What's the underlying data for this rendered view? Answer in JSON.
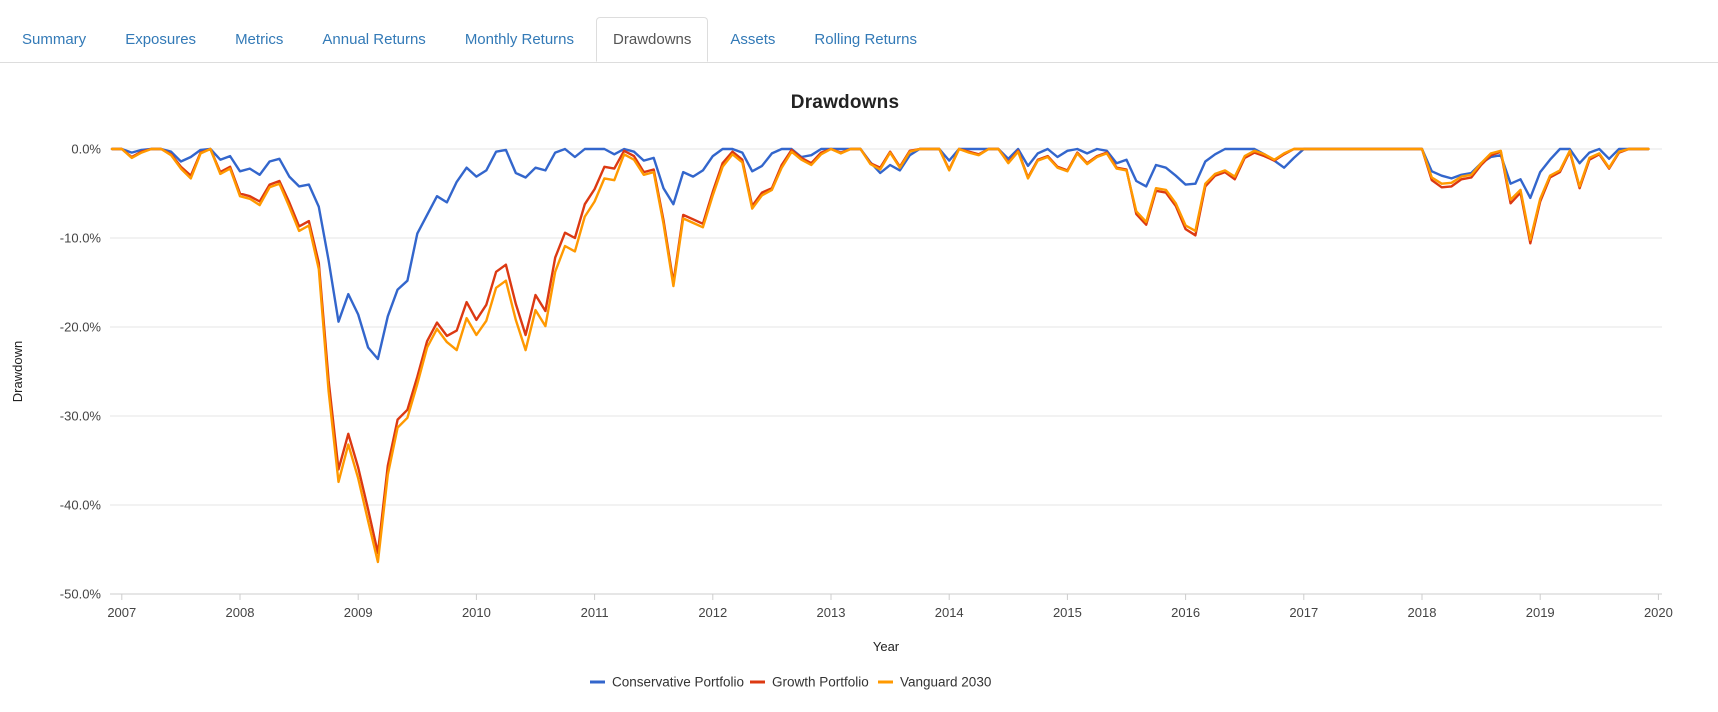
{
  "tabs": {
    "items": [
      {
        "label": "Summary",
        "active": false
      },
      {
        "label": "Exposures",
        "active": false
      },
      {
        "label": "Metrics",
        "active": false
      },
      {
        "label": "Annual Returns",
        "active": false
      },
      {
        "label": "Monthly Returns",
        "active": false
      },
      {
        "label": "Drawdowns",
        "active": true
      },
      {
        "label": "Assets",
        "active": false
      },
      {
        "label": "Rolling Returns",
        "active": false
      }
    ],
    "link_color": "#337ab7",
    "active_text_color": "#555555",
    "border_color": "#dddddd"
  },
  "chart_data": {
    "type": "line",
    "title": "Drawdowns",
    "xlabel": "Year",
    "ylabel": "Drawdown",
    "ylim": [
      -50,
      0
    ],
    "yticks": [
      {
        "value": 0,
        "label": "0.0%"
      },
      {
        "value": -10,
        "label": "-10.0%"
      },
      {
        "value": -20,
        "label": "-20.0%"
      },
      {
        "value": -30,
        "label": "-30.0%"
      },
      {
        "value": -40,
        "label": "-40.0%"
      },
      {
        "value": -50,
        "label": "-50.0%"
      }
    ],
    "xticks": [
      "2007",
      "2008",
      "2009",
      "2010",
      "2011",
      "2012",
      "2013",
      "2014",
      "2015",
      "2016",
      "2017",
      "2018",
      "2019",
      "2020"
    ],
    "x_start_month": "2006-12",
    "frequency": "monthly",
    "grid": "horizontal-only",
    "legend_position": "bottom-center",
    "series": [
      {
        "name": "Conservative Portfolio",
        "color": "#3366cc",
        "values": [
          0,
          0,
          -0.4,
          -0.1,
          0,
          0,
          -0.3,
          -1.4,
          -0.9,
          -0.1,
          0,
          -1.2,
          -0.8,
          -2.5,
          -2.2,
          -2.9,
          -1.4,
          -1.1,
          -3.1,
          -4.2,
          -4.0,
          -6.5,
          -12.5,
          -19.4,
          -16.3,
          -18.6,
          -22.3,
          -23.6,
          -18.8,
          -15.8,
          -14.8,
          -9.5,
          -7.4,
          -5.3,
          -6.0,
          -3.7,
          -2.1,
          -3.1,
          -2.4,
          -0.3,
          -0.1,
          -2.7,
          -3.2,
          -2.1,
          -2.4,
          -0.4,
          0,
          -0.9,
          0,
          0,
          0,
          -0.6,
          0,
          -0.3,
          -1.3,
          -1.0,
          -4.4,
          -6.2,
          -2.6,
          -3.1,
          -2.4,
          -0.8,
          0,
          0,
          -0.4,
          -2.5,
          -1.9,
          -0.5,
          0,
          0,
          -0.9,
          -0.7,
          0,
          0,
          0,
          0,
          0,
          -1.5,
          -2.7,
          -1.8,
          -2.4,
          -0.7,
          0,
          0,
          0,
          -1.3,
          0,
          0,
          0,
          0,
          0,
          -1.1,
          0,
          -1.9,
          -0.5,
          0,
          -0.9,
          -0.2,
          0,
          -0.5,
          0,
          -0.2,
          -1.6,
          -1.2,
          -3.6,
          -4.2,
          -1.8,
          -2.1,
          -3.0,
          -4.0,
          -3.9,
          -1.4,
          -0.6,
          0,
          0,
          0,
          0,
          -0.6,
          -1.3,
          -2.1,
          -1.0,
          0,
          0,
          0,
          0,
          0,
          0,
          0,
          0,
          0,
          0,
          0,
          0,
          0,
          -2.5,
          -3.0,
          -3.3,
          -2.9,
          -2.7,
          -1.6,
          -0.9,
          -0.7,
          -3.9,
          -3.4,
          -5.5,
          -2.6,
          -1.2,
          0,
          0,
          -1.6,
          -0.4,
          0,
          -1.1,
          0,
          0,
          0,
          0
        ]
      },
      {
        "name": "Growth Portfolio",
        "color": "#dc3912",
        "values": [
          0,
          0,
          -0.9,
          -0.3,
          0,
          0,
          -0.6,
          -2.0,
          -3.0,
          -0.4,
          0,
          -2.6,
          -2.0,
          -5.0,
          -5.3,
          -5.9,
          -4.0,
          -3.6,
          -6.0,
          -8.7,
          -8.1,
          -12.8,
          -26.0,
          -36.0,
          -32.0,
          -35.8,
          -40.5,
          -45.4,
          -35.6,
          -30.4,
          -29.3,
          -25.6,
          -21.6,
          -19.5,
          -21.0,
          -20.4,
          -17.2,
          -19.2,
          -17.5,
          -13.8,
          -13.0,
          -17.4,
          -20.9,
          -16.4,
          -18.2,
          -12.2,
          -9.4,
          -10.0,
          -6.2,
          -4.5,
          -2.0,
          -2.2,
          -0.2,
          -0.8,
          -2.6,
          -2.3,
          -8.0,
          -15.0,
          -7.4,
          -7.9,
          -8.4,
          -4.8,
          -1.6,
          -0.3,
          -1.2,
          -6.4,
          -4.9,
          -4.4,
          -1.8,
          -0.1,
          -1.0,
          -1.6,
          -0.4,
          0,
          -0.4,
          0,
          0,
          -1.6,
          -2.1,
          -0.3,
          -2.0,
          -0.2,
          0,
          0,
          0,
          -2.3,
          0,
          -0.3,
          -0.6,
          0,
          0,
          -1.5,
          -0.2,
          -3.2,
          -1.2,
          -0.8,
          -2.0,
          -2.4,
          -0.4,
          -1.6,
          -0.8,
          -0.4,
          -2.1,
          -2.3,
          -7.3,
          -8.5,
          -4.7,
          -4.9,
          -6.4,
          -9.0,
          -9.7,
          -4.2,
          -3.0,
          -2.6,
          -3.4,
          -1.0,
          -0.4,
          -0.8,
          -1.3,
          -0.6,
          0,
          0,
          0,
          0,
          0,
          0,
          0,
          0,
          0,
          0,
          0,
          0,
          0,
          0,
          -3.5,
          -4.3,
          -4.2,
          -3.4,
          -3.2,
          -1.8,
          -0.7,
          -0.3,
          -6.1,
          -4.9,
          -10.6,
          -5.9,
          -3.2,
          -2.6,
          -0.3,
          -4.4,
          -1.2,
          -0.6,
          -2.2,
          -0.4,
          0,
          0,
          0
        ]
      },
      {
        "name": "Vanguard 2030",
        "color": "#ff9900",
        "values": [
          0,
          0,
          -1.0,
          -0.4,
          0,
          0,
          -0.7,
          -2.2,
          -3.3,
          -0.5,
          0,
          -2.8,
          -2.2,
          -5.3,
          -5.6,
          -6.3,
          -4.3,
          -3.9,
          -6.5,
          -9.2,
          -8.6,
          -13.5,
          -27.2,
          -37.4,
          -33.2,
          -37.0,
          -41.8,
          -46.4,
          -36.6,
          -31.3,
          -30.2,
          -26.4,
          -22.3,
          -20.2,
          -21.7,
          -22.6,
          -19.0,
          -20.9,
          -19.3,
          -15.6,
          -14.8,
          -19.2,
          -22.6,
          -18.1,
          -19.9,
          -13.8,
          -10.9,
          -11.5,
          -7.6,
          -5.9,
          -3.3,
          -3.5,
          -0.6,
          -1.2,
          -2.9,
          -2.6,
          -8.4,
          -15.4,
          -7.8,
          -8.3,
          -8.8,
          -5.2,
          -2.0,
          -0.6,
          -1.5,
          -6.7,
          -5.2,
          -4.6,
          -2.1,
          -0.3,
          -1.2,
          -1.8,
          -0.6,
          0,
          -0.5,
          0,
          0,
          -1.7,
          -2.3,
          -0.4,
          -2.1,
          -0.3,
          0,
          0,
          0,
          -2.4,
          0,
          -0.4,
          -0.7,
          0,
          0,
          -1.6,
          -0.3,
          -3.3,
          -1.3,
          -0.9,
          -2.1,
          -2.5,
          -0.5,
          -1.7,
          -0.9,
          -0.5,
          -2.2,
          -2.4,
          -7.0,
          -8.2,
          -4.4,
          -4.6,
          -6.1,
          -8.6,
          -9.2,
          -3.9,
          -2.8,
          -2.4,
          -3.1,
          -0.8,
          -0.2,
          -0.6,
          -1.2,
          -0.5,
          0,
          0,
          0,
          0,
          0,
          0,
          0,
          0,
          0,
          0,
          0,
          0,
          0,
          0,
          -3.2,
          -3.9,
          -3.8,
          -3.1,
          -2.9,
          -1.6,
          -0.5,
          -0.2,
          -5.7,
          -4.6,
          -10.2,
          -5.6,
          -3.0,
          -2.4,
          -0.2,
          -4.2,
          -1.0,
          -0.5,
          -2.1,
          -0.3,
          0,
          0,
          0
        ]
      }
    ],
    "colors": {
      "gridline": "#e6e6e6",
      "axis_line": "#cccccc",
      "tick_label": "#444444",
      "axis_title": "#222222",
      "legend_text": "#333333",
      "title": "#222222"
    }
  }
}
